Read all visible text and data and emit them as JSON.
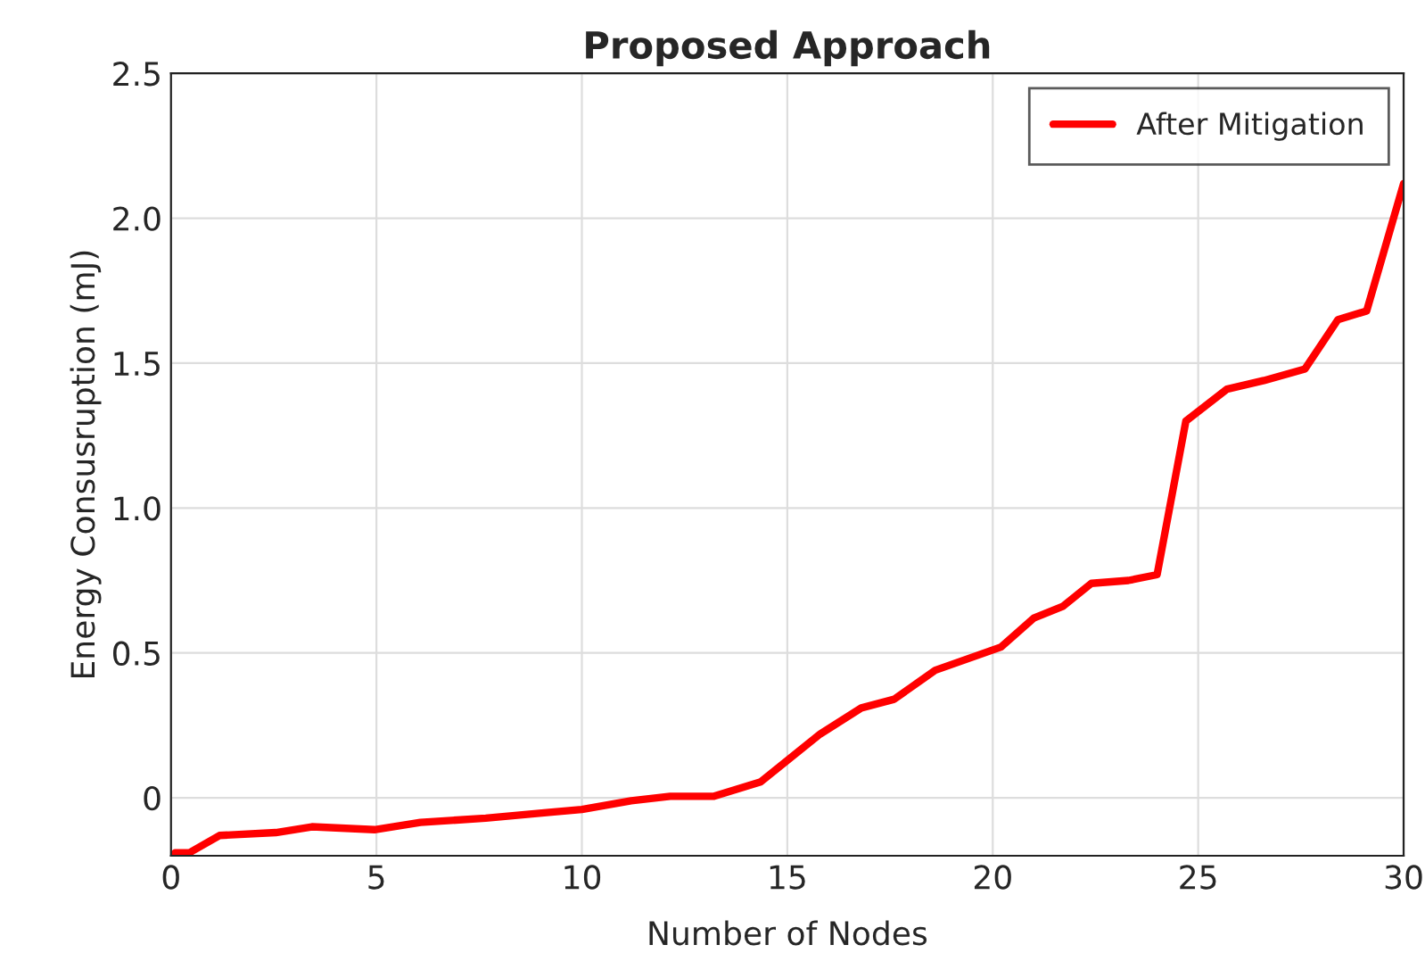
{
  "chart_data": {
    "type": "line",
    "title": "Proposed Approach",
    "xlabel": "Number of Nodes",
    "ylabel": "Energy Consusruption (mJ)",
    "xlim": [
      0,
      30
    ],
    "ylim": [
      -0.2,
      2.5
    ],
    "xticks": [
      0,
      5,
      10,
      15,
      20,
      25,
      30
    ],
    "yticks": [
      0,
      0.5,
      {
        "value": 1,
        "label": "1.0"
      },
      1.5,
      {
        "value": 2,
        "label": "2.0"
      },
      2.5
    ],
    "grid": true,
    "legend": "top right",
    "line_style": "solid",
    "marker": "none",
    "series": [
      {
        "name": "After Mitigation",
        "color": "#ff0000",
        "x": [
          0.1,
          0.44,
          1.18,
          2.55,
          3.43,
          4.95,
          6.07,
          7.66,
          9.2,
          10,
          11.2,
          12.15,
          13.2,
          14.35,
          15.8,
          16.8,
          17.6,
          18.6,
          20.2,
          21.0,
          21.7,
          22.4,
          23.3,
          24.0,
          24.7,
          25.7,
          26.6,
          27.6,
          28.4,
          29.1,
          30
        ],
        "values": [
          -0.19,
          -0.19,
          -0.13,
          -0.12,
          -0.1,
          -0.11,
          -0.085,
          -0.07,
          -0.05,
          -0.04,
          -0.01,
          0.005,
          0.005,
          0.055,
          0.22,
          0.31,
          0.34,
          0.44,
          0.52,
          0.62,
          0.66,
          0.74,
          0.75,
          0.77,
          1.3,
          1.41,
          1.44,
          1.48,
          1.65,
          1.68,
          2.12
        ]
      }
    ]
  }
}
